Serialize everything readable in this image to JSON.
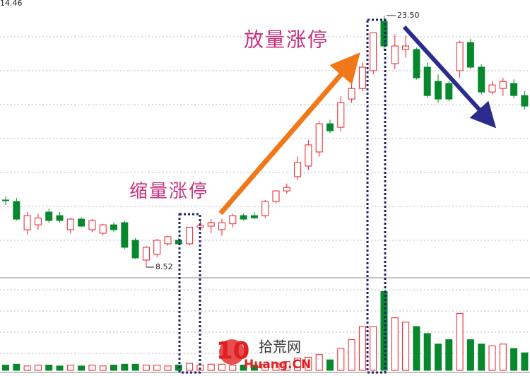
{
  "chart_data": {
    "type": "candlestick",
    "annotations": {
      "top_left": "14.46",
      "high": "23.50",
      "low": "8.52",
      "shrink_limit_up": "缩量涨停",
      "volume_limit_up": "放量涨停"
    },
    "ylim": [
      7.93,
      24.26
    ],
    "volume_lim": [
      0,
      100
    ],
    "up_color": "#e8202a",
    "down_color": "#08882c",
    "open": [
      12.52,
      12.43,
      10.75,
      11.04,
      11.8,
      11.59,
      10.75,
      11.38,
      10.75,
      10.54,
      11.04,
      11.17,
      10.12,
      8.94,
      9.28,
      9.91,
      10.12,
      9.91,
      10.9,
      10.96,
      10.75,
      11.1,
      11.59,
      11.59,
      11.59,
      12.43,
      13.06,
      13.91,
      14.54,
      15.38,
      17.06,
      16.85,
      18.53,
      19.16,
      20.22,
      23.16,
      20.64,
      21.48,
      21.48,
      20.43,
      19.58,
      19.46,
      20.22,
      21.9,
      20.43,
      18.95,
      19.16,
      19.46,
      18.74
    ],
    "high": [
      12.73,
      12.64,
      11.8,
      11.7,
      12.0,
      11.8,
      11.45,
      11.5,
      11.4,
      11.1,
      11.2,
      11.3,
      10.25,
      9.8,
      10.2,
      10.4,
      10.25,
      10.9,
      11.3,
      11.38,
      11.4,
      11.7,
      11.7,
      11.8,
      12.52,
      13.1,
      13.5,
      15.1,
      16.1,
      17.2,
      17.3,
      18.7,
      19.6,
      20.7,
      22.47,
      23.5,
      22.4,
      22.32,
      21.6,
      20.7,
      20.0,
      19.6,
      22.0,
      22.11,
      20.6,
      19.6,
      19.8,
      19.7,
      19.0
    ],
    "low": [
      12.22,
      11.3,
      10.46,
      10.75,
      11.17,
      11.17,
      10.54,
      10.9,
      10.6,
      10.4,
      10.6,
      9.6,
      9.0,
      8.52,
      9.1,
      9.8,
      9.85,
      9.8,
      10.7,
      10.54,
      10.4,
      10.9,
      11.3,
      11.4,
      11.45,
      12.3,
      12.9,
      13.7,
      14.3,
      15.1,
      16.5,
      16.6,
      18.3,
      19.0,
      20.0,
      21.4,
      20.3,
      21.0,
      19.7,
      18.6,
      18.3,
      18.4,
      19.8,
      20.3,
      18.8,
      18.8,
      18.7,
      18.6,
      17.9
    ],
    "close": [
      12.47,
      11.38,
      11.59,
      11.45,
      11.3,
      11.3,
      11.38,
      10.96,
      11.3,
      11.04,
      10.75,
      9.7,
      9.07,
      9.7,
      10.12,
      10.33,
      9.91,
      10.9,
      11.0,
      11.17,
      11.17,
      11.59,
      11.38,
      11.45,
      12.43,
      13.06,
      13.27,
      14.75,
      15.8,
      17.06,
      16.64,
      18.32,
      19.16,
      20.43,
      22.47,
      21.69,
      21.69,
      21.69,
      19.79,
      18.74,
      18.53,
      18.53,
      21.9,
      20.43,
      18.95,
      19.37,
      19.58,
      18.74,
      18.11
    ],
    "volume": [
      6,
      7,
      5,
      6,
      6,
      5,
      6,
      5,
      6,
      5,
      6,
      7,
      7,
      6,
      6,
      5,
      6,
      8,
      6,
      7,
      7,
      6,
      6,
      6,
      7,
      8,
      10,
      14,
      15,
      18,
      12,
      25,
      35,
      50,
      50,
      90,
      60,
      55,
      50,
      42,
      30,
      35,
      65,
      35,
      30,
      28,
      30,
      25,
      20
    ]
  },
  "watermark": {
    "number": "10",
    "name": "拾荒网",
    "domain": "Huang.CN"
  }
}
